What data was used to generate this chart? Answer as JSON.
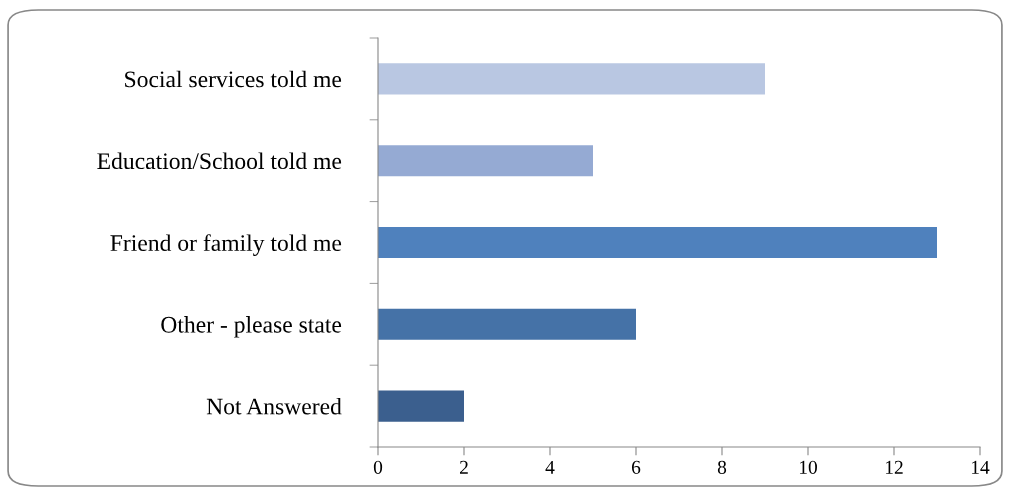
{
  "chart_data": {
    "type": "bar",
    "orientation": "horizontal",
    "categories": [
      "Social services told me",
      "Education/School told me",
      "Friend or family told me",
      "Other - please state",
      "Not Answered"
    ],
    "values": [
      9,
      5,
      13,
      6,
      2
    ],
    "colors": [
      "#b9c7e2",
      "#95aad3",
      "#4f81bd",
      "#4572a7",
      "#3b5f8e"
    ],
    "xlim": [
      0,
      14
    ],
    "xticks": [
      0,
      2,
      4,
      6,
      8,
      10,
      12,
      14
    ]
  }
}
